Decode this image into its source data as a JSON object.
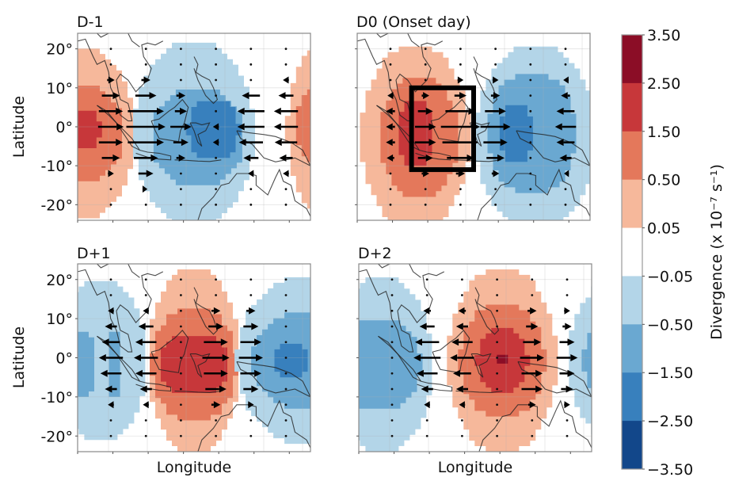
{
  "chart_data": {
    "type": "heatmap",
    "title": "",
    "xlabel": "Longitude",
    "ylabel": "Latitude",
    "xlim": [
      90,
      150
    ],
    "ylim": [
      -24,
      24
    ],
    "yticks": [
      20,
      10,
      0,
      -10,
      -20
    ],
    "ytick_labels": [
      "20°",
      "10°",
      "0°",
      "-10°",
      "-20°"
    ],
    "grid": true,
    "colorbar": {
      "label": "Divergence (x 10⁻⁷ s⁻¹)",
      "levels": [
        3.5,
        2.5,
        1.5,
        0.5,
        0.05,
        -0.05,
        -0.5,
        -1.5,
        -2.5,
        -3.5
      ],
      "level_labels": [
        "3.50",
        "2.50",
        "1.50",
        "0.50",
        "0.05",
        "−0.05",
        "−0.50",
        "−1.50",
        "−2.50",
        "−3.50"
      ],
      "colors": [
        "#8b0d26",
        "#c7373a",
        "#e4785b",
        "#f6b89b",
        "#ffffff",
        "#b3d5e8",
        "#6aa8d1",
        "#3880bd",
        "#12478a"
      ]
    },
    "vector_grid": {
      "lons": [
        98.5,
        107.5,
        116.5,
        125.5,
        134.5,
        143.5
      ],
      "lats": [
        20,
        16,
        12,
        8,
        4,
        0,
        -4,
        -8,
        -12,
        -16,
        -20
      ]
    },
    "panels": [
      {
        "title": "D-1",
        "show_ylabel": true,
        "show_xlabel": false,
        "fields": [
          {
            "sign": 1,
            "lon": 90,
            "lat": -1,
            "rx": 15,
            "ry": 22.5,
            "level": 0.5
          },
          {
            "sign": 1,
            "lon": 90,
            "lat": -1,
            "rx": 12,
            "ry": 13,
            "level": 1.5
          },
          {
            "sign": 1,
            "lon": 92,
            "lat": 0,
            "rx": 4,
            "ry": 5.5,
            "level": 2.5
          },
          {
            "sign": -1,
            "lon": 120,
            "lat": -1,
            "rx": 15.5,
            "ry": 24,
            "level": -0.05
          },
          {
            "sign": -1,
            "lon": 121,
            "lat": -2,
            "rx": 12,
            "ry": 13,
            "level": -0.5
          },
          {
            "sign": -1,
            "lon": 125,
            "lat": 0,
            "rx": 6.5,
            "ry": 8,
            "level": -1.5
          },
          {
            "sign": 1,
            "lon": 152,
            "lat": 0,
            "rx": 8,
            "ry": 21,
            "level": 0.5
          },
          {
            "sign": 1,
            "lon": 152,
            "lat": 1,
            "rx": 6,
            "ry": 10,
            "level": 1.5
          }
        ],
        "u": [
          [
            0,
            0,
            0,
            0,
            0,
            0
          ],
          [
            0,
            0,
            0,
            0,
            0,
            0
          ],
          [
            0.5,
            0.6,
            0,
            0,
            0,
            -0.4
          ],
          [
            1.2,
            1.4,
            0.6,
            0,
            -1.2,
            -1.0
          ],
          [
            1.6,
            2.4,
            0.8,
            0,
            -1.8,
            -1.6
          ],
          [
            1.7,
            2.6,
            1.4,
            -0.4,
            -1.8,
            -1.6
          ],
          [
            1.6,
            2.4,
            1.0,
            -0.4,
            -1.6,
            -1.5
          ],
          [
            1.2,
            1.6,
            0.6,
            0,
            -1.0,
            -0.9
          ],
          [
            0.4,
            1.0,
            0,
            0,
            -0.4,
            -0.4
          ],
          [
            0,
            0.2,
            0,
            0,
            0,
            0
          ],
          [
            0,
            0,
            0,
            0,
            0,
            0
          ]
        ]
      },
      {
        "title": "D0 (Onset day)",
        "show_ylabel": false,
        "show_xlabel": false,
        "box": {
          "lon0": 104,
          "lon1": 120,
          "lat0": -11,
          "lat1": 10
        },
        "fields": [
          {
            "sign": 1,
            "lon": 105,
            "lat": -2,
            "rx": 14,
            "ry": 24,
            "level": 0.5
          },
          {
            "sign": 1,
            "lon": 106,
            "lat": -2,
            "rx": 10,
            "ry": 16,
            "level": 1.5
          },
          {
            "sign": 1,
            "lon": 105,
            "lat": -1,
            "rx": 4.5,
            "ry": 9,
            "level": 2.5
          },
          {
            "sign": -1,
            "lon": 136,
            "lat": -2,
            "rx": 15.5,
            "ry": 24,
            "level": -0.05
          },
          {
            "sign": -1,
            "lon": 135,
            "lat": -1,
            "rx": 11.5,
            "ry": 16,
            "level": -0.5
          },
          {
            "sign": -1,
            "lon": 131,
            "lat": -1,
            "rx": 4.5,
            "ry": 8,
            "level": -1.5
          }
        ],
        "u": [
          [
            0,
            0,
            0,
            0,
            0,
            0
          ],
          [
            0,
            0,
            0,
            0,
            0,
            0
          ],
          [
            0,
            0,
            0.4,
            0.4,
            0,
            -0.3
          ],
          [
            -0.4,
            0.5,
            0.8,
            0.6,
            0,
            -0.6
          ],
          [
            -0.6,
            1.0,
            2.0,
            1.4,
            0,
            -1.2
          ],
          [
            -0.6,
            1.4,
            2.6,
            2.0,
            0,
            -1.4
          ],
          [
            -0.6,
            1.4,
            2.4,
            1.6,
            0,
            -1.2
          ],
          [
            -0.5,
            1.0,
            1.8,
            1.2,
            0,
            -0.8
          ],
          [
            0,
            0.5,
            0.6,
            0.5,
            0,
            -0.2
          ],
          [
            0,
            0,
            0,
            0,
            0,
            0
          ],
          [
            0,
            0,
            0,
            0,
            0,
            0
          ]
        ]
      },
      {
        "title": "D+1",
        "show_ylabel": true,
        "show_xlabel": true,
        "fields": [
          {
            "sign": -1,
            "lon": 96,
            "lat": 0,
            "rx": 12,
            "ry": 21,
            "level": -0.05
          },
          {
            "sign": -1,
            "lon": 90,
            "lat": -1,
            "rx": 5,
            "ry": 9,
            "level": -0.5
          },
          {
            "sign": -1,
            "lon": 99.5,
            "lat": -1,
            "rx": 2,
            "ry": 9,
            "level": -0.5
          },
          {
            "sign": 1,
            "lon": 120,
            "lat": 0,
            "rx": 12,
            "ry": 24,
            "level": 0.5
          },
          {
            "sign": 1,
            "lon": 120,
            "lat": -1,
            "rx": 11,
            "ry": 15,
            "level": 1.5
          },
          {
            "sign": 1,
            "lon": 120,
            "lat": -1,
            "rx": 9,
            "ry": 8,
            "level": 2.5
          },
          {
            "sign": -1,
            "lon": 149,
            "lat": 0,
            "rx": 18,
            "ry": 22,
            "level": -0.05
          },
          {
            "sign": -1,
            "lon": 149,
            "lat": 0,
            "rx": 14,
            "ry": 13,
            "level": -0.5
          },
          {
            "sign": -1,
            "lon": 145,
            "lat": 0,
            "rx": 4.5,
            "ry": 5,
            "level": -1.5
          }
        ],
        "u": [
          [
            0,
            0,
            0,
            0,
            0,
            0
          ],
          [
            0,
            0,
            0,
            0,
            0,
            0
          ],
          [
            -0.4,
            -0.4,
            0,
            0.6,
            0.6,
            0
          ],
          [
            -0.8,
            -1.0,
            0,
            1.0,
            1.0,
            0
          ],
          [
            -1.2,
            -1.4,
            0,
            1.6,
            1.4,
            0
          ],
          [
            -1.6,
            -1.6,
            0,
            1.8,
            1.6,
            0
          ],
          [
            -1.4,
            -1.4,
            0,
            1.6,
            1.4,
            0
          ],
          [
            -0.8,
            -0.8,
            0,
            1.4,
            1.0,
            0
          ],
          [
            -0.4,
            -0.4,
            0,
            0.6,
            0.4,
            0
          ],
          [
            0,
            0,
            0,
            0,
            0,
            0
          ],
          [
            0,
            0,
            0,
            0,
            0,
            0
          ]
        ]
      },
      {
        "title": "D+2",
        "show_ylabel": false,
        "show_xlabel": true,
        "fields": [
          {
            "sign": -1,
            "lon": 96,
            "lat": -1,
            "rx": 13,
            "ry": 23,
            "level": -0.05
          },
          {
            "sign": -1,
            "lon": 95,
            "lat": -1,
            "rx": 11,
            "ry": 12,
            "level": -0.5
          },
          {
            "sign": 1,
            "lon": 127,
            "lat": 0,
            "rx": 14,
            "ry": 24,
            "level": 0.5
          },
          {
            "sign": 1,
            "lon": 127,
            "lat": 0,
            "rx": 11,
            "ry": 15,
            "level": 1.5
          },
          {
            "sign": 1,
            "lon": 127,
            "lat": 0,
            "rx": 6.5,
            "ry": 9,
            "level": 2.5
          },
          {
            "sign": 1,
            "lon": 127,
            "lat": 0,
            "rx": 1,
            "ry": 1.5,
            "level": 3.5
          },
          {
            "sign": -1,
            "lon": 157,
            "lat": 0,
            "rx": 13,
            "ry": 21,
            "level": -0.05
          },
          {
            "sign": -1,
            "lon": 156,
            "lat": 0,
            "rx": 8,
            "ry": 12,
            "level": -0.5
          }
        ],
        "u": [
          [
            0,
            0,
            0,
            0,
            0,
            0
          ],
          [
            0,
            0,
            0,
            0,
            0,
            0
          ],
          [
            0,
            -0.5,
            -0.5,
            0,
            0.6,
            0.4
          ],
          [
            0,
            -1.0,
            -0.8,
            0,
            0.8,
            0.6
          ],
          [
            0,
            -1.6,
            -1.4,
            0,
            1.2,
            1.0
          ],
          [
            0,
            -1.8,
            -1.6,
            0,
            1.6,
            1.4
          ],
          [
            0,
            -1.4,
            -1.2,
            0,
            1.4,
            1.0
          ],
          [
            0,
            -0.8,
            -0.8,
            0,
            1.4,
            0.8
          ],
          [
            0,
            -0.4,
            -0.4,
            0,
            0.5,
            0.4
          ],
          [
            0,
            0,
            0,
            0,
            0,
            0
          ],
          [
            0,
            0,
            0,
            0,
            0,
            0
          ]
        ]
      }
    ]
  }
}
